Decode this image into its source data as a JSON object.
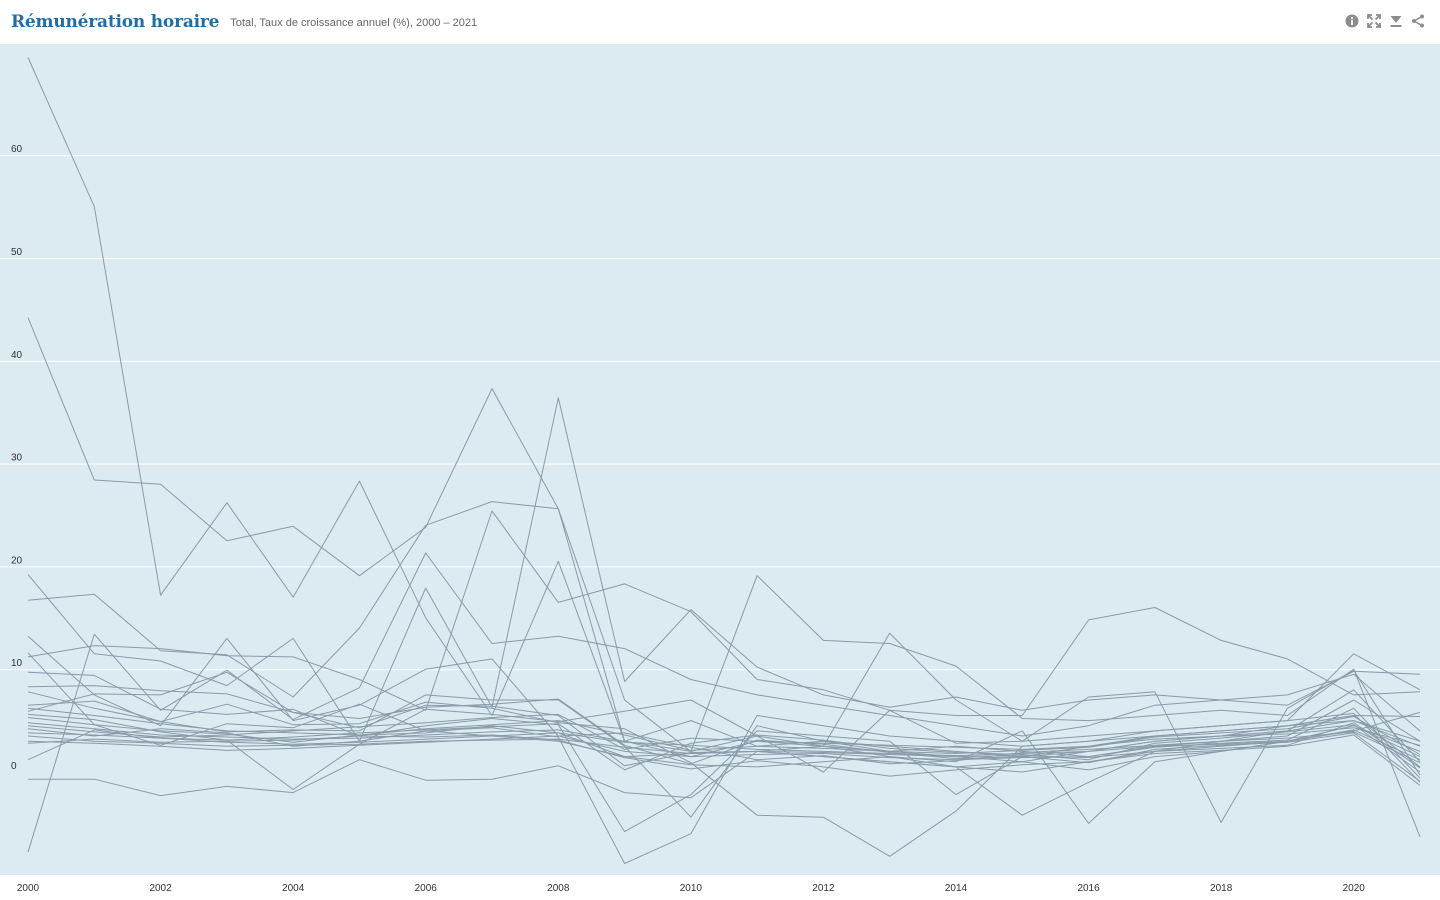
{
  "header": {
    "title": "Rémunération horaire",
    "subtitle": "Total, Taux de croissance annuel (%), 2000 – 2021"
  },
  "toolbar": {
    "icons": [
      "info-icon",
      "fullscreen-icon",
      "download-icon",
      "share-icon"
    ]
  },
  "colors": {
    "background": "#dceaf1",
    "line": "#8a9aa8",
    "grid": "#ffffff",
    "title": "#1f6ea8"
  },
  "chart_data": {
    "type": "line",
    "title": "Rémunération horaire",
    "subtitle": "Total, Taux de croissance annuel (%), 2000 – 2021",
    "xlabel": "",
    "ylabel": "",
    "grid": true,
    "legend": "none",
    "xlim": [
      2000,
      2021
    ],
    "ylim": [
      -10,
      70
    ],
    "x_ticks": [
      2000,
      2002,
      2004,
      2006,
      2008,
      2010,
      2012,
      2014,
      2016,
      2018,
      2020
    ],
    "y_ticks": [
      0,
      10,
      20,
      30,
      40,
      50,
      60
    ],
    "x": [
      2000,
      2001,
      2002,
      2003,
      2004,
      2005,
      2006,
      2007,
      2008,
      2009,
      2010,
      2011,
      2012,
      2013,
      2014,
      2015,
      2016,
      2017,
      2018,
      2019,
      2020,
      2021
    ],
    "series": [
      {
        "values": [
          69.5,
          55.0,
          17.2,
          26.2,
          17.0,
          28.3,
          15.0,
          5.5,
          20.5,
          3.0,
          2.0,
          3.5,
          2.5,
          2.0,
          1.5,
          1.0,
          2.0,
          3.0,
          3.5,
          4.0,
          8.0,
          1.0
        ]
      },
      {
        "values": [
          44.2,
          28.4,
          28.0,
          22.5,
          23.9,
          19.1,
          23.8,
          37.3,
          25.6,
          3.0,
          5.0,
          2.5,
          3.0,
          2.0,
          2.5,
          2.0,
          1.5,
          2.5,
          3.0,
          3.5,
          7.0,
          3.0
        ]
      },
      {
        "values": [
          -7.8,
          13.4,
          6.0,
          9.9,
          5.1,
          8.2,
          21.3,
          12.5,
          13.2,
          12.0,
          9.0,
          7.5,
          6.5,
          5.5,
          4.5,
          3.5,
          4.5,
          6.5,
          7.0,
          7.5,
          9.5,
          4.0
        ]
      },
      {
        "values": [
          19.2,
          11.5,
          10.8,
          8.4,
          13.0,
          3.0,
          17.9,
          6.3,
          36.4,
          8.8,
          15.8,
          10.2,
          7.5,
          6.3,
          7.3,
          6.0,
          7.0,
          7.5,
          7.0,
          6.5,
          9.8,
          9.5
        ]
      },
      {
        "values": [
          16.7,
          17.3,
          11.8,
          11.4,
          7.3,
          14.0,
          24.0,
          26.3,
          25.6,
          7.0,
          2.0,
          19.1,
          12.8,
          12.5,
          10.3,
          5.2,
          5.0,
          5.5,
          6.0,
          5.5,
          10.0,
          -6.3
        ]
      },
      {
        "values": [
          11.2,
          12.3,
          12.0,
          11.3,
          11.2,
          9.0,
          6.0,
          25.4,
          16.5,
          18.3,
          15.6,
          9.0,
          8.0,
          6.0,
          5.5,
          5.5,
          14.8,
          16.0,
          12.8,
          11.0,
          7.5,
          7.8
        ]
      },
      {
        "values": [
          13.2,
          7.5,
          4.5,
          13.0,
          5.0,
          6.5,
          10.0,
          11.0,
          3.5,
          2.0,
          1.5,
          3.0,
          2.5,
          13.5,
          7.0,
          3.0,
          3.5,
          4.0,
          4.5,
          5.0,
          11.5,
          8.0
        ]
      },
      {
        "values": [
          9.7,
          9.4,
          6.1,
          5.6,
          6.1,
          3.5,
          4.5,
          5.2,
          4.6,
          -5.8,
          -2.2,
          4.0,
          3.5,
          3.0,
          -2.2,
          1.5,
          2.0,
          3.0,
          3.5,
          4.5,
          5.5,
          5.4
        ]
      },
      {
        "values": [
          11.6,
          4.6,
          2.6,
          4.7,
          4.3,
          6.6,
          4.0,
          4.3,
          3.4,
          -8.9,
          -6.0,
          5.5,
          4.5,
          3.5,
          3.0,
          2.5,
          3.0,
          4.0,
          4.5,
          5.0,
          5.7,
          -1.0
        ]
      },
      {
        "values": [
          7.8,
          6.2,
          4.9,
          3.9,
          4.1,
          4.0,
          7.5,
          7.0,
          7.0,
          2.5,
          -4.4,
          4.5,
          3.0,
          2.5,
          2.0,
          1.5,
          2.5,
          3.5,
          4.0,
          4.5,
          5.0,
          3.0
        ]
      },
      {
        "values": [
          6.5,
          6.9,
          4.9,
          6.6,
          4.6,
          4.7,
          6.8,
          6.2,
          4.8,
          4.2,
          0.9,
          -4.2,
          -4.4,
          -8.2,
          -3.8,
          2.5,
          3.0,
          3.5,
          4.0,
          4.5,
          5.5,
          0.5
        ]
      },
      {
        "values": [
          -0.7,
          -0.7,
          -2.3,
          -1.4,
          -2.0,
          1.2,
          -0.8,
          -0.7,
          0.6,
          -2.0,
          -2.5,
          2.0,
          1.5,
          1.0,
          0.5,
          0.0,
          1.0,
          2.0,
          2.5,
          3.0,
          4.5,
          1.5
        ]
      },
      {
        "values": [
          1.2,
          4.1,
          3.3,
          3.1,
          -1.7,
          2.7,
          6.1,
          5.6,
          4.9,
          5.9,
          7.0,
          3.5,
          0.0,
          6.0,
          2.8,
          3.0,
          7.3,
          7.8,
          -4.9,
          6.2,
          9.9,
          -0.3
        ]
      },
      {
        "values": [
          5.9,
          7.6,
          7.5,
          9.7,
          5.8,
          4.3,
          6.5,
          6.4,
          5.5,
          0.6,
          1.9,
          2.0,
          2.5,
          1.5,
          1.0,
          4.0,
          -5.0,
          1.0,
          2.0,
          3.0,
          4.5,
          2.0
        ]
      },
      {
        "values": [
          4.2,
          3.5,
          4.2,
          3.8,
          2.5,
          3.0,
          4.0,
          3.5,
          3.0,
          1.5,
          1.8,
          2.0,
          1.5,
          1.0,
          0.5,
          -4.2,
          -1.0,
          2.0,
          3.0,
          4.0,
          5.0,
          2.5
        ]
      },
      {
        "values": [
          5.3,
          4.6,
          4.0,
          3.7,
          2.9,
          3.6,
          3.8,
          4.5,
          3.8,
          1.5,
          0.7,
          0.5,
          1.0,
          1.5,
          0.5,
          1.0,
          0.2,
          1.5,
          2.0,
          3.0,
          4.0,
          5.8
        ]
      },
      {
        "values": [
          3.5,
          3.0,
          2.8,
          2.5,
          2.6,
          2.7,
          3.0,
          3.1,
          3.2,
          2.4,
          1.8,
          2.0,
          1.9,
          1.7,
          1.5,
          1.6,
          1.4,
          2.0,
          2.3,
          2.6,
          4.8,
          0.4
        ]
      },
      {
        "values": [
          4.8,
          4.2,
          3.6,
          3.4,
          3.2,
          3.3,
          3.6,
          3.9,
          4.1,
          3.0,
          1.5,
          1.7,
          1.8,
          1.4,
          1.2,
          1.4,
          1.5,
          2.4,
          2.8,
          3.1,
          6.2,
          -0.6
        ]
      },
      {
        "values": [
          3.0,
          2.8,
          2.5,
          2.1,
          2.3,
          2.6,
          2.9,
          3.2,
          3.5,
          3.8,
          2.4,
          1.2,
          1.6,
          0.8,
          1.1,
          1.9,
          2.2,
          2.6,
          3.0,
          3.3,
          3.9,
          0.9
        ]
      },
      {
        "values": [
          6.2,
          5.5,
          4.7,
          4.0,
          3.8,
          3.6,
          4.2,
          4.6,
          5.0,
          3.6,
          2.1,
          2.5,
          2.3,
          2.0,
          1.8,
          2.1,
          2.4,
          3.4,
          3.8,
          4.2,
          5.4,
          1.7
        ]
      },
      {
        "values": [
          2.8,
          3.2,
          2.9,
          3.0,
          3.1,
          3.5,
          3.4,
          3.6,
          3.1,
          1.4,
          0.3,
          1.1,
          0.5,
          -0.4,
          0.2,
          0.7,
          1.0,
          1.8,
          2.1,
          2.5,
          3.6,
          -1.3
        ]
      },
      {
        "values": [
          4.5,
          3.9,
          3.4,
          3.6,
          4.0,
          4.4,
          4.8,
          5.3,
          5.6,
          2.2,
          3.3,
          3.0,
          2.8,
          2.6,
          2.4,
          2.2,
          2.5,
          3.2,
          3.5,
          3.7,
          4.3,
          2.6
        ]
      },
      {
        "values": [
          5.6,
          5.1,
          3.9,
          3.1,
          3.4,
          3.8,
          4.1,
          4.4,
          4.7,
          0.2,
          2.8,
          3.6,
          3.1,
          2.3,
          1.9,
          1.7,
          1.2,
          2.8,
          3.3,
          3.9,
          4.6,
          0.0
        ]
      },
      {
        "values": [
          3.8,
          3.6,
          3.3,
          2.9,
          2.7,
          2.9,
          3.2,
          3.5,
          3.8,
          2.9,
          2.6,
          2.2,
          2.0,
          1.8,
          1.6,
          1.8,
          2.0,
          2.5,
          2.7,
          3.0,
          4.1,
          1.2
        ]
      },
      {
        "values": [
          8.3,
          8.4,
          7.9,
          7.6,
          5.8,
          5.2,
          6.3,
          6.6,
          7.1,
          2.6,
          0.8,
          3.1,
          2.7,
          1.9,
          1.3,
          1.5,
          0.9,
          2.2,
          2.6,
          2.9,
          3.8,
          -0.9
        ]
      }
    ]
  }
}
